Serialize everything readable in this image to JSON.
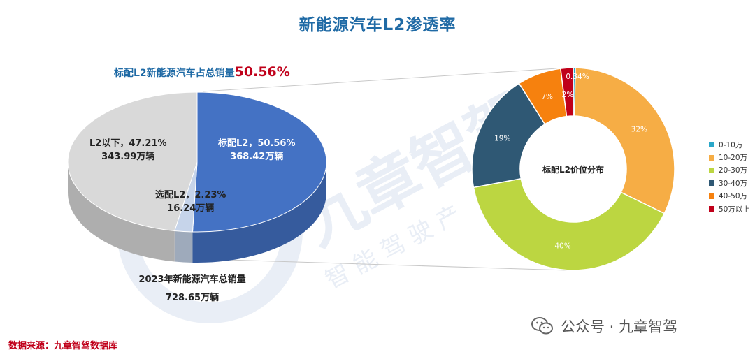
{
  "title": "新能源汽车L2渗透率",
  "headline": {
    "text": "标配L2新能源汽车占总销量",
    "value": "50.56%"
  },
  "pie_labels": {
    "below": {
      "line1": "L2以下，47.21%",
      "line2": "343.99万辆"
    },
    "standard": {
      "line1": "标配L2，50.56%",
      "line2": "368.42万辆"
    },
    "optional": {
      "line1": "选配L2，2.23%",
      "line2": "16.24万辆"
    }
  },
  "total": {
    "line1": "2023年新能源汽车总销量",
    "line2": "728.65万辆"
  },
  "source": "数据来源：九章智驾数据库",
  "watermark": {
    "account": "公众号 · 九章智驾",
    "brand": "九章智驾",
    "sub": "智 能 驾 驶 产"
  },
  "colors": {
    "title": "#1f6aa5",
    "accent_red": "#c0001a",
    "standard": "#4472c4",
    "below": "#d9d9d9",
    "optional": "#c6d4ea"
  },
  "chart_data": [
    {
      "type": "pie",
      "title": "",
      "slices": [
        {
          "name": "标配L2",
          "value": 50.56,
          "count": "368.42万辆",
          "color": "#4472c4"
        },
        {
          "name": "选配L2",
          "value": 2.23,
          "count": "16.24万辆",
          "color": "#c6d4ea"
        },
        {
          "name": "L2以下",
          "value": 47.21,
          "count": "343.99万辆",
          "color": "#d9d9d9"
        }
      ]
    },
    {
      "type": "pie",
      "center_label": "标配L2价位分布",
      "slices": [
        {
          "name": "0-10万",
          "value": 0.34,
          "label": "0.34%",
          "color": "#2aa7c9"
        },
        {
          "name": "10-20万",
          "value": 32,
          "label": "32%",
          "color": "#f6ad45"
        },
        {
          "name": "20-30万",
          "value": 40,
          "label": "40%",
          "color": "#bcd641"
        },
        {
          "name": "30-40万",
          "value": 19,
          "label": "19%",
          "color": "#2f5874"
        },
        {
          "name": "40-50万",
          "value": 7,
          "label": "7%",
          "color": "#f6810e"
        },
        {
          "name": "50万以上",
          "value": 2,
          "label": "2%",
          "color": "#c0001a"
        }
      ],
      "legend_position": "right"
    }
  ]
}
